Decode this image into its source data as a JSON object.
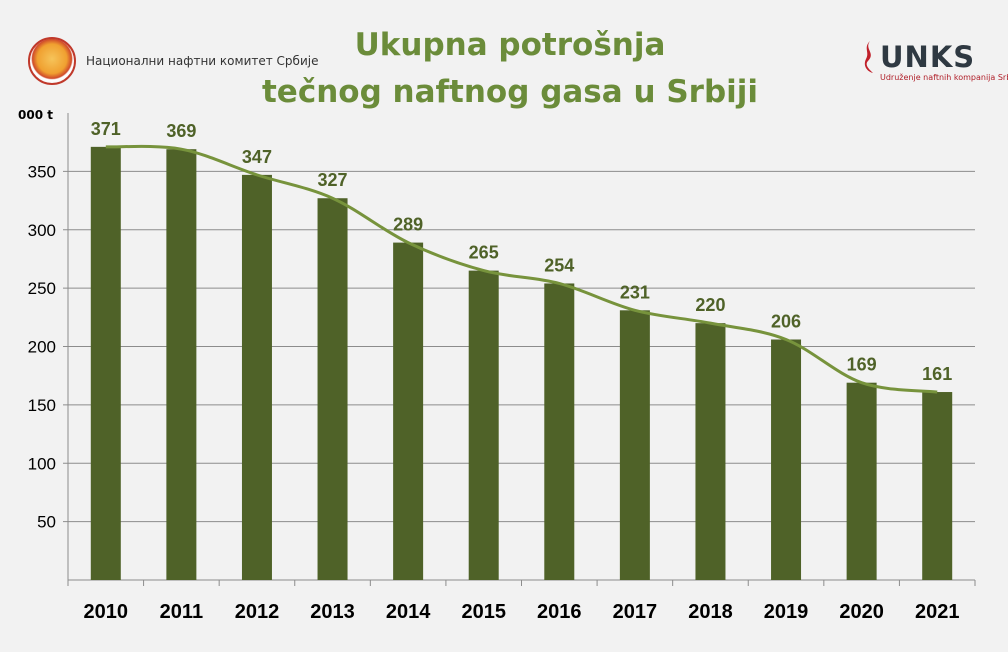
{
  "header": {
    "title_line1": "Ukupna potrošnja",
    "title_line2": "tečnog naftnog gasa u Srbiji",
    "logo_left_text": "Национални нафтни комитет Србије",
    "logo_right_word": "UNKS",
    "logo_right_sub": "Udruženje naftnih kompanija Srbije"
  },
  "colors": {
    "bar": "#4f6228",
    "line": "#77933c",
    "label": "#4f6228",
    "title": "#6b8c3a"
  },
  "chart_data": {
    "type": "bar",
    "title": "Ukupna potrošnja tečnog naftnog gasa u Srbiji",
    "ylabel": "000 t",
    "xlabel": "",
    "categories": [
      "2010",
      "2011",
      "2012",
      "2013",
      "2014",
      "2015",
      "2016",
      "2017",
      "2018",
      "2019",
      "2020",
      "2021"
    ],
    "values": [
      371,
      369,
      347,
      327,
      289,
      265,
      254,
      231,
      220,
      206,
      169,
      161
    ],
    "ylim": [
      0,
      400
    ],
    "yticks": [
      50,
      100,
      150,
      200,
      250,
      300,
      350
    ],
    "grid": true,
    "trend_line": true,
    "data_labels": true
  }
}
